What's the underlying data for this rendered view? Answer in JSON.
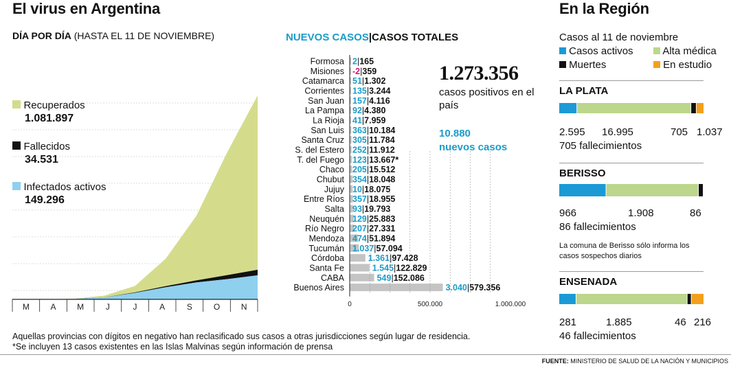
{
  "titles": {
    "left": "El virus en Argentina",
    "right": "En la Región",
    "daily_bold": "DÍA POR DÍA",
    "daily_rest": " (HASTA EL 11 DE NOVIEMBRE)",
    "new_cases": "NUEVOS CASOS",
    "sep": "|",
    "total_cases": "CASOS TOTALES"
  },
  "legend": {
    "recovered_label": "Recuperados",
    "recovered_value": "1.081.897",
    "deaths_label": "Fallecidos",
    "deaths_value": "34.531",
    "active_label": "Infectados activos",
    "active_value": "149.296"
  },
  "colors": {
    "recovered": "#d4dc8c",
    "deaths": "#111111",
    "active": "#8fd0ee",
    "new_cases": "#1b9cc8",
    "negative": "#d0167f",
    "bar_gray": "#c4c4c4",
    "region_active": "#1b9ad6",
    "region_discharged": "#bcd68c",
    "region_deaths": "#111111",
    "region_study": "#f2a01c"
  },
  "summary": {
    "total": "1.273.356",
    "total_text": "casos positivos en el país",
    "new": "10.880",
    "new_text": "nuevos casos"
  },
  "region": {
    "date_label": "Casos al 11 de noviembre",
    "legend": [
      "Casos activos",
      "Alta médica",
      "Muertes",
      "En estudio"
    ],
    "cities": [
      {
        "name": "LA PLATA",
        "active": 2595,
        "discharged": 16995,
        "deaths": 705,
        "study": 1037,
        "labels": [
          "2.595",
          "16.995",
          "705",
          "1.037"
        ],
        "fallecimientos": "705 fallecimientos"
      },
      {
        "name": "BERISSO",
        "active": 966,
        "discharged": 1908,
        "deaths": 86,
        "study": 0,
        "labels": [
          "966",
          "1.908",
          "86"
        ],
        "fallecimientos": "86 fallecimientos",
        "note": "La comuna de Berisso sólo informa los casos sospechos diarios"
      },
      {
        "name": "ENSENADA",
        "active": 281,
        "discharged": 1885,
        "deaths": 46,
        "study": 216,
        "labels": [
          "281",
          "1.885",
          "46",
          "216"
        ],
        "fallecimientos": "46 fallecimientos"
      }
    ]
  },
  "footnotes": {
    "line1": "Aquellas provincias con dígitos en negativo han reclasificado sus casos a otras jurisdicciones según lugar de residencia.",
    "line2": "*Se incluyen 13 casos existentes en las Islas Malvinas según información de prensa",
    "source_bold": "FUENTE:",
    "source_rest": " MINISTERIO DE SALUD DE LA NACIÓN Y MUNICIPIOS"
  },
  "chart_data": [
    {
      "type": "area",
      "stacked": true,
      "x": [
        "M",
        "A",
        "M",
        "J",
        "J",
        "A",
        "S",
        "O",
        "N"
      ],
      "series": [
        {
          "name": "Infectados activos",
          "values": [
            0,
            0,
            3000,
            12000,
            40000,
            75000,
            105000,
            125000,
            149296
          ]
        },
        {
          "name": "Fallecidos",
          "values": [
            0,
            0,
            400,
            1000,
            3000,
            7000,
            13000,
            25000,
            34531
          ]
        },
        {
          "name": "Recuperados",
          "values": [
            0,
            0,
            1000,
            10000,
            40000,
            170000,
            400000,
            760000,
            1081897
          ]
        }
      ]
    },
    {
      "type": "bar",
      "orientation": "horizontal",
      "categories": [
        "Formosa",
        "Misiones",
        "Catamarca",
        "Corrientes",
        "San Juan",
        "La Pampa",
        "La Rioja",
        "San Luis",
        "Santa Cruz",
        "S. del Estero",
        "T. del Fuego",
        "Chaco",
        "Chubut",
        "Jujuy",
        "Entre Ríos",
        "Salta",
        "Neuquén",
        "Río Negro",
        "Mendoza",
        "Tucumán",
        "Córdoba",
        "Santa Fe",
        "CABA",
        "Buenos Aires"
      ],
      "new_cases": [
        2,
        -2,
        51,
        135,
        157,
        92,
        41,
        363,
        305,
        252,
        123,
        205,
        354,
        10,
        357,
        93,
        129,
        207,
        474,
        1037,
        1361,
        1545,
        549,
        3040
      ],
      "new_labels": [
        "2",
        "-2",
        "51",
        "135",
        "157",
        "92",
        "41",
        "363",
        "305",
        "252",
        "123",
        "205",
        "354",
        "10",
        "357",
        "93",
        "129",
        "207",
        "474",
        "1.037",
        "1.361",
        "1.545",
        "549",
        "3.040"
      ],
      "totals": [
        165,
        359,
        1302,
        3244,
        4116,
        4380,
        7959,
        10184,
        11784,
        11912,
        13667,
        15512,
        18048,
        18075,
        18955,
        19793,
        25883,
        27331,
        51894,
        57094,
        97428,
        122829,
        152086,
        579356
      ],
      "total_labels": [
        "165",
        "359",
        "1.302",
        "3.244",
        "4.116",
        "4.380",
        "7.959",
        "10.184",
        "11.784",
        "11.912",
        "13.667*",
        "15.512",
        "18.048",
        "18.075",
        "18.955",
        "19.793",
        "25.883",
        "27.331",
        "51.894",
        "57.094",
        "97.428",
        "122.829",
        "152.086",
        "579.356"
      ],
      "xlim": [
        0,
        1000000
      ],
      "ticks": [
        "0",
        "500.000",
        "1.000.000"
      ]
    }
  ]
}
